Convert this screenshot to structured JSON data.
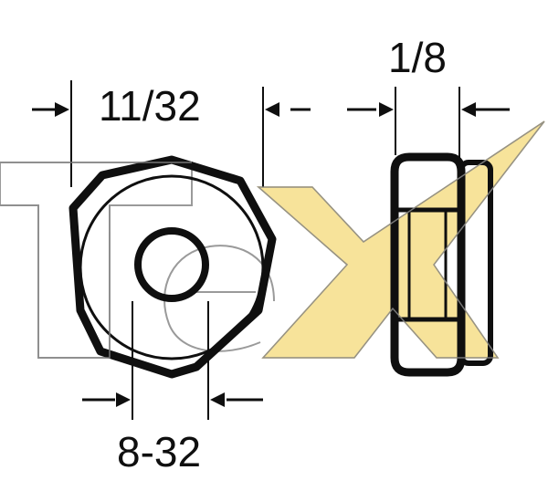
{
  "dimensions": {
    "hex_width": "11/32",
    "nut_thickness": "1/8",
    "thread": "8-32"
  },
  "watermark": {
    "letters": "TeX",
    "fill_color": "#f7e39a",
    "outline_color": "#9a9a9a"
  },
  "colors": {
    "line": "#0f0f0f",
    "background": "#ffffff"
  }
}
